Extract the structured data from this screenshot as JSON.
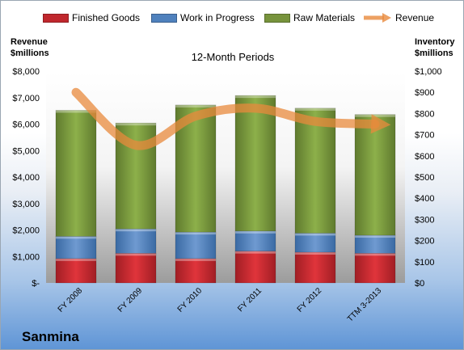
{
  "chart_data": {
    "type": "bar",
    "stacked": true,
    "subtitle": "12-Month Periods",
    "company": "Sanmina",
    "categories": [
      "FY 2008",
      "FY 2009",
      "FY 2010",
      "FY 2011",
      "FY 2012",
      "TTM 3-2013"
    ],
    "y_left": {
      "label_lines": [
        "Revenue",
        "$millions"
      ],
      "ticks": [
        "$-",
        "$1,000",
        "$2,000",
        "$3,000",
        "$4,000",
        "$5,000",
        "$6,000",
        "$7,000",
        "$8,000"
      ],
      "ylim": [
        0,
        8000
      ]
    },
    "y_right": {
      "label_lines": [
        "Inventory",
        "$millions"
      ],
      "ticks": [
        "$0",
        "$100",
        "$200",
        "$300",
        "$400",
        "$500",
        "$600",
        "$700",
        "$800",
        "$900",
        "$1,000"
      ],
      "ylim": [
        0,
        1000
      ]
    },
    "series": [
      {
        "name": "Finished Goods",
        "axis": "right",
        "kind": "bar",
        "color": "#c0272d",
        "values": [
          115,
          140,
          115,
          150,
          145,
          140
        ]
      },
      {
        "name": "Work in Progress",
        "axis": "right",
        "kind": "bar",
        "color": "#4f81bd",
        "values": [
          105,
          115,
          125,
          95,
          90,
          85
        ]
      },
      {
        "name": "Raw Materials",
        "axis": "right",
        "kind": "bar",
        "color": "#77933c",
        "values": [
          595,
          500,
          600,
          640,
          590,
          570
        ]
      },
      {
        "name": "Revenue",
        "axis": "left",
        "kind": "line",
        "color": "#e8893c",
        "values": [
          7200,
          5200,
          6300,
          6600,
          6100,
          6000
        ]
      }
    ],
    "grid": false,
    "legend": "top"
  }
}
